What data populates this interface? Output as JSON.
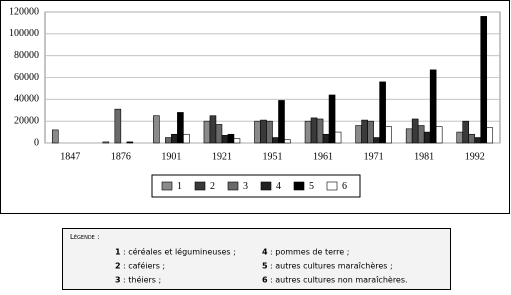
{
  "chart_data": {
    "type": "bar",
    "categories": [
      "1847",
      "1876",
      "1901",
      "1921",
      "1951",
      "1961",
      "1971",
      "1981",
      "1992"
    ],
    "series": [
      {
        "name": "1",
        "color": "#8a8a8a",
        "values": [
          12000,
          1000,
          25000,
          20000,
          20000,
          20000,
          16000,
          13000,
          10000
        ]
      },
      {
        "name": "2",
        "color": "#3a3a3a",
        "values": [
          0,
          0,
          0,
          25000,
          21000,
          23000,
          21000,
          22000,
          20000
        ]
      },
      {
        "name": "3",
        "color": "#6a6a6a",
        "values": [
          0,
          31000,
          5000,
          17000,
          20000,
          22000,
          20000,
          16000,
          8000
        ]
      },
      {
        "name": "4",
        "color": "#222222",
        "values": [
          0,
          0,
          8000,
          7000,
          5000,
          8000,
          5000,
          10000,
          5000
        ]
      },
      {
        "name": "5",
        "color": "#000000",
        "values": [
          0,
          1000,
          28000,
          8000,
          39000,
          44000,
          56000,
          67000,
          116000
        ]
      },
      {
        "name": "6",
        "color": "#ffffff",
        "values": [
          0,
          0,
          8000,
          4000,
          3000,
          10000,
          15000,
          15000,
          14000
        ]
      }
    ],
    "ylim": [
      0,
      120000
    ],
    "yticks": [
      0,
      20000,
      40000,
      60000,
      80000,
      100000,
      120000
    ],
    "grid": true
  },
  "legend_note": {
    "title": "Légende :",
    "items": [
      {
        "num": "1",
        "text": ": céréales et légumineuses ;"
      },
      {
        "num": "4",
        "text": ": pommes de terre ;"
      },
      {
        "num": "2",
        "text": ": caféiers ;"
      },
      {
        "num": "5",
        "text": ": autres cultures maraîchères ;"
      },
      {
        "num": "3",
        "text": ": théiers ;"
      },
      {
        "num": "6",
        "text": ": autres cultures non maraîchères."
      }
    ]
  }
}
